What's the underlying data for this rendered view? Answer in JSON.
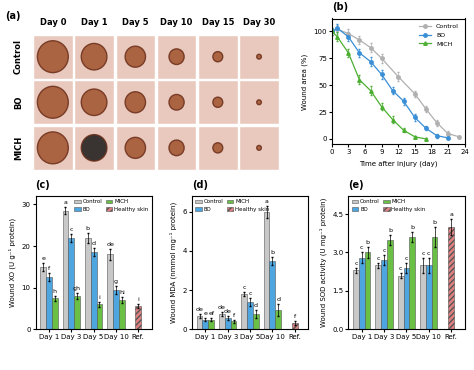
{
  "chart_data": [
    {
      "type": "image_grid",
      "title": "(a)",
      "columns": [
        "Day 0",
        "Day 1",
        "Day 5",
        "Day 10",
        "Day 15",
        "Day 30"
      ],
      "rows": [
        "Control",
        "BO",
        "MICH"
      ]
    },
    {
      "type": "line",
      "title": "(b)",
      "x_label": "Time after injury (day)",
      "y_label": "Wound area (%)",
      "xlim": [
        0,
        24
      ],
      "xticks": [
        0,
        3,
        6,
        9,
        12,
        15,
        18,
        21,
        24
      ],
      "ylim": [
        -5,
        112
      ],
      "yticks": [
        0,
        25,
        50,
        75,
        100
      ],
      "legend": "upper right",
      "series": [
        {
          "name": "Control",
          "color": "#b0b0b0",
          "marker": "o",
          "x": [
            0,
            1,
            3,
            5,
            7,
            9,
            12,
            15,
            17,
            19,
            21,
            23
          ],
          "values": [
            100,
            102,
            98,
            92,
            85,
            75,
            58,
            42,
            28,
            15,
            5,
            2
          ],
          "errors": [
            3,
            4,
            4,
            4,
            4,
            4,
            4,
            3,
            3,
            3,
            2,
            1
          ]
        },
        {
          "name": "BO",
          "color": "#3a8fd6",
          "marker": "o",
          "x": [
            0,
            1,
            3,
            5,
            7,
            9,
            11,
            13,
            15,
            17,
            19,
            21
          ],
          "values": [
            100,
            103,
            95,
            80,
            72,
            60,
            45,
            35,
            20,
            10,
            3,
            1
          ],
          "errors": [
            3,
            4,
            4,
            4,
            4,
            4,
            3,
            3,
            3,
            2,
            2,
            1
          ]
        },
        {
          "name": "MICH",
          "color": "#4caf32",
          "marker": "^",
          "x": [
            0,
            1,
            3,
            5,
            7,
            9,
            11,
            13,
            15,
            17
          ],
          "values": [
            100,
            95,
            80,
            55,
            45,
            30,
            18,
            8,
            2,
            0
          ],
          "errors": [
            3,
            4,
            4,
            4,
            4,
            3,
            3,
            2,
            1,
            1
          ]
        }
      ]
    },
    {
      "type": "bar",
      "title": "(c)",
      "y_label": "Wound XO (U g⁻¹ protein)",
      "categories": [
        "Day 1",
        "Day 3",
        "Day 5",
        "Day 10",
        "Ref."
      ],
      "ylim": [
        0,
        32
      ],
      "yticks": [
        0,
        10,
        20,
        30
      ],
      "legend": "upper right",
      "series": [
        {
          "name": "Control",
          "color": "#c8c8c8",
          "values": [
            15,
            28.5,
            22,
            18,
            null
          ],
          "errors": [
            1,
            0.8,
            1.2,
            1.3,
            null
          ],
          "letters": [
            "e",
            "a",
            "b",
            "de",
            null
          ]
        },
        {
          "name": "BO",
          "color": "#4da6e0",
          "values": [
            12.5,
            22,
            18.5,
            9.5,
            null
          ],
          "errors": [
            1,
            1,
            1,
            1,
            null
          ],
          "letters": [
            "f",
            "c",
            "d",
            "g",
            null
          ]
        },
        {
          "name": "MICH",
          "color": "#6abf45",
          "values": [
            7.5,
            8,
            6,
            7,
            null
          ],
          "errors": [
            0.6,
            0.7,
            0.6,
            0.7,
            null
          ],
          "letters": [
            "h",
            "gh",
            "i",
            "hi",
            null
          ]
        },
        {
          "name": "Healthy skin",
          "color": "#e08080",
          "values": [
            null,
            null,
            null,
            null,
            5.5
          ],
          "errors": [
            null,
            null,
            null,
            null,
            0.5
          ],
          "letters": [
            null,
            null,
            null,
            null,
            "i"
          ]
        }
      ]
    },
    {
      "type": "bar",
      "title": "(d)",
      "y_label": "Wound MDA (nmmol mg⁻¹ protein)",
      "categories": [
        "Day 1",
        "Day 3",
        "Day 5",
        "Day 10",
        "Ref."
      ],
      "ylim": [
        0,
        6.8
      ],
      "yticks": [
        0,
        2,
        4,
        6
      ],
      "legend": "upper left",
      "series": [
        {
          "name": "Control",
          "color": "#c8c8c8",
          "values": [
            0.7,
            0.8,
            1.8,
            6.0,
            null
          ],
          "errors": [
            0.1,
            0.1,
            0.1,
            0.3,
            null
          ],
          "letters": [
            "de",
            "de",
            "c",
            "a",
            null
          ]
        },
        {
          "name": "BO",
          "color": "#4da6e0",
          "values": [
            0.5,
            0.6,
            1.4,
            3.5,
            null
          ],
          "errors": [
            0.1,
            0.1,
            0.2,
            0.2,
            null
          ],
          "letters": [
            "e",
            "de",
            "c",
            "b",
            null
          ]
        },
        {
          "name": "MICH",
          "color": "#6abf45",
          "values": [
            0.5,
            0.4,
            0.8,
            1.0,
            null
          ],
          "errors": [
            0.1,
            0.1,
            0.2,
            0.3,
            null
          ],
          "letters": [
            "ef",
            "f",
            "d",
            "d",
            null
          ]
        },
        {
          "name": "Healthy skin",
          "color": "#e08080",
          "values": [
            null,
            null,
            null,
            null,
            0.3
          ],
          "errors": [
            null,
            null,
            null,
            null,
            0.1
          ],
          "letters": [
            null,
            null,
            null,
            null,
            "f"
          ]
        }
      ]
    },
    {
      "type": "bar",
      "title": "(e)",
      "y_label": "Wound SOD activity (U mg⁻¹ protein)",
      "categories": [
        "Day 1",
        "Day 3",
        "Day 5",
        "Day 10",
        "Ref."
      ],
      "ylim": [
        0,
        5.2
      ],
      "yticks": [
        0.0,
        1.5,
        3.0,
        4.5
      ],
      "legend": "upper left",
      "series": [
        {
          "name": "Control",
          "color": "#c8c8c8",
          "values": [
            2.3,
            2.5,
            2.1,
            2.5,
            null
          ],
          "errors": [
            0.1,
            0.1,
            0.1,
            0.3,
            null
          ],
          "letters": [
            "c",
            "c",
            "c",
            "c",
            null
          ]
        },
        {
          "name": "BO",
          "color": "#4da6e0",
          "values": [
            2.8,
            2.7,
            2.4,
            2.5,
            null
          ],
          "errors": [
            0.2,
            0.2,
            0.2,
            0.3,
            null
          ],
          "letters": [
            "c",
            "c",
            "c",
            "c",
            null
          ]
        },
        {
          "name": "MICH",
          "color": "#6abf45",
          "values": [
            3.0,
            3.5,
            3.6,
            3.6,
            null
          ],
          "errors": [
            0.2,
            0.2,
            0.2,
            0.4,
            null
          ],
          "letters": [
            "b",
            "b",
            "b",
            "b",
            null
          ]
        },
        {
          "name": "Healthy skin",
          "color": "#e08080",
          "values": [
            null,
            null,
            null,
            null,
            4.0
          ],
          "errors": [
            null,
            null,
            null,
            null,
            0.3
          ],
          "letters": [
            null,
            null,
            null,
            null,
            "a"
          ]
        }
      ]
    }
  ]
}
